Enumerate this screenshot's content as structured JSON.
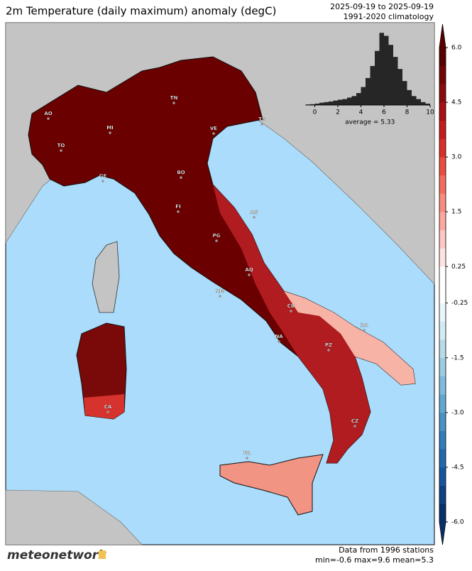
{
  "header": {
    "title": "2m Temperature (daily maximum) anomaly (degC)",
    "date_range": "2025-09-19 to 2025-09-19",
    "climatology": "1991-2020 climatology"
  },
  "map": {
    "cities": [
      "AO",
      "TO",
      "MI",
      "GE",
      "TN",
      "VE",
      "TS",
      "BO",
      "FI",
      "AN",
      "PG",
      "AQ",
      "RM",
      "CB",
      "BA",
      "NA",
      "PZ",
      "CA",
      "CZ",
      "PA"
    ]
  },
  "colorbar": {
    "levels": [
      -6,
      -5.5,
      -5,
      -4.5,
      -4,
      -3.5,
      -3,
      -2.5,
      -2,
      -1.5,
      -1,
      -0.5,
      -0.25,
      0,
      0.25,
      0.5,
      1,
      1.5,
      2,
      2.5,
      3,
      3.5,
      4,
      4.5,
      5,
      5.5,
      6
    ],
    "colors": [
      "#08306b",
      "#0d4285",
      "#15559e",
      "#2168ad",
      "#327dbb",
      "#4892c5",
      "#62a7d0",
      "#7fbbdb",
      "#9ccbe3",
      "#b7dbe9",
      "#d3ecf4",
      "#eaf6fa",
      "#ffffff",
      "#ffffff",
      "#fde3e3",
      "#fcc7c5",
      "#fca8a1",
      "#f98b7f",
      "#f46d5c",
      "#ea4d3e",
      "#db2f2a",
      "#c51b1d",
      "#a90f14",
      "#8c0a0c",
      "#720406",
      "#5a0000"
    ],
    "ticks": [
      {
        "value": 6,
        "label": "6.0"
      },
      {
        "value": 4.5,
        "label": "4.5"
      },
      {
        "value": 3,
        "label": "3.0"
      },
      {
        "value": 1.5,
        "label": "1.5"
      },
      0.25,
      -0.25,
      -1.5,
      {
        "value": -3,
        "label": "-3.0"
      },
      -4.5,
      {
        "value": -6,
        "label": "-6.0"
      }
    ]
  },
  "histogram": {
    "type": "histogram",
    "color": "#262626",
    "bins": [
      -0.8,
      -0.4,
      0,
      0.4,
      0.8,
      1.2,
      1.6,
      2,
      2.4,
      2.8,
      3.2,
      3.6,
      4,
      4.4,
      4.8,
      5.2,
      5.6,
      6,
      6.4,
      6.8,
      7.2,
      7.6,
      8,
      8.4,
      8.8,
      9.2,
      9.6,
      10
    ],
    "counts": [
      2,
      3,
      5,
      8,
      10,
      12,
      15,
      18,
      20,
      25,
      30,
      40,
      60,
      90,
      130,
      180,
      240,
      230,
      200,
      160,
      120,
      80,
      50,
      30,
      20,
      10,
      5
    ],
    "xlim": [
      -0.8,
      10
    ],
    "ylim": [
      0,
      250
    ],
    "xticks": [
      0,
      2,
      4,
      6,
      8,
      10
    ],
    "annotation": "average = 5.33"
  },
  "footer": {
    "source": "Data from 1996 stations",
    "stats": "min=-0.6 max=9.6 mean=5.3",
    "logo": "meteonetwork"
  }
}
